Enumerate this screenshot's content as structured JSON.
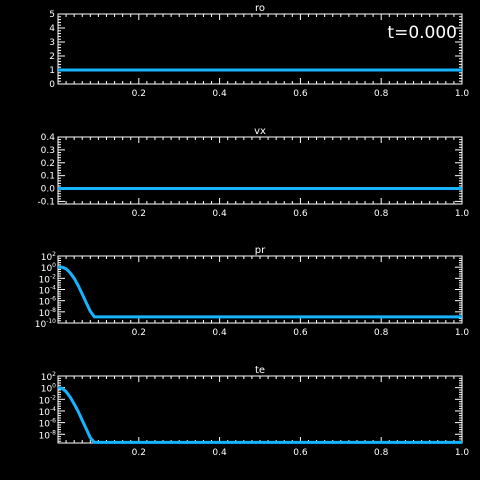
{
  "time_label": "t=0.000",
  "colors": {
    "background": "#000000",
    "axes": "#ffffff",
    "curve": "#17b3ff"
  },
  "chart_data": [
    {
      "type": "line",
      "title": "ro",
      "xlim": [
        0.0,
        1.0
      ],
      "ylim": [
        0,
        5
      ],
      "yscale": "linear",
      "xticks": [
        0.2,
        0.4,
        0.6,
        0.8,
        1.0
      ],
      "xtick_labels": [
        "0.2",
        "0.4",
        "0.6",
        "0.8",
        "1.0"
      ],
      "yticks": [
        0,
        1,
        2,
        3,
        4,
        5
      ],
      "ytick_labels": [
        "0",
        "1",
        "2",
        "3",
        "4",
        "5"
      ],
      "series": [
        {
          "x": [
            0.0,
            1.0
          ],
          "y": [
            1.0,
            1.0
          ]
        }
      ]
    },
    {
      "type": "line",
      "title": "vx",
      "xlim": [
        0.0,
        1.0
      ],
      "ylim": [
        -0.12,
        0.4
      ],
      "yscale": "linear",
      "xticks": [
        0.2,
        0.4,
        0.6,
        0.8,
        1.0
      ],
      "xtick_labels": [
        "0.2",
        "0.4",
        "0.6",
        "0.8",
        "1.0"
      ],
      "yticks": [
        -0.1,
        0.0,
        0.1,
        0.2,
        0.3,
        0.4
      ],
      "ytick_labels": [
        "-0.1",
        "0.0",
        "0.1",
        "0.2",
        "0.3",
        "0.4"
      ],
      "series": [
        {
          "x": [
            0.0,
            1.0
          ],
          "y": [
            0.0,
            0.0
          ]
        }
      ]
    },
    {
      "type": "line",
      "title": "pr",
      "xlim": [
        0.0,
        1.0
      ],
      "ylim": [
        -10,
        2
      ],
      "yscale": "log",
      "xticks": [
        0.2,
        0.4,
        0.6,
        0.8,
        1.0
      ],
      "xtick_labels": [
        "0.2",
        "0.4",
        "0.6",
        "0.8",
        "1.0"
      ],
      "yticks": [
        2,
        0,
        -2,
        -4,
        -6,
        -8,
        -10
      ],
      "ytick_base": "10",
      "ytick_exponents": [
        "2",
        "0",
        "-2",
        "-4",
        "-6",
        "-8",
        "-10"
      ],
      "series": [
        {
          "x": [
            0.0,
            0.01,
            0.02,
            0.03,
            0.04,
            0.05,
            0.06,
            0.07,
            0.08,
            0.09,
            1.0
          ],
          "y": [
            0.0,
            0.0,
            -0.3,
            -1.0,
            -2.0,
            -3.3,
            -4.8,
            -6.4,
            -7.9,
            -8.9,
            -8.9
          ]
        }
      ]
    },
    {
      "type": "line",
      "title": "te",
      "xlim": [
        0.0,
        1.0
      ],
      "ylim": [
        -9.5,
        2
      ],
      "yscale": "log",
      "xticks": [
        0.2,
        0.4,
        0.6,
        0.8,
        1.0
      ],
      "xtick_labels": [
        "0.2",
        "0.4",
        "0.6",
        "0.8",
        "1.0"
      ],
      "yticks": [
        2,
        0,
        -2,
        -4,
        -6,
        -8
      ],
      "ytick_base": "10",
      "ytick_exponents": [
        "2",
        "0",
        "-2",
        "-4",
        "-6",
        "-8"
      ],
      "series": [
        {
          "x": [
            0.0,
            0.01,
            0.02,
            0.03,
            0.04,
            0.05,
            0.06,
            0.07,
            0.08,
            0.09,
            1.0
          ],
          "y": [
            0.0,
            -0.1,
            -0.7,
            -1.6,
            -2.8,
            -4.1,
            -5.6,
            -7.1,
            -8.6,
            -9.4,
            -9.4
          ]
        }
      ]
    }
  ]
}
